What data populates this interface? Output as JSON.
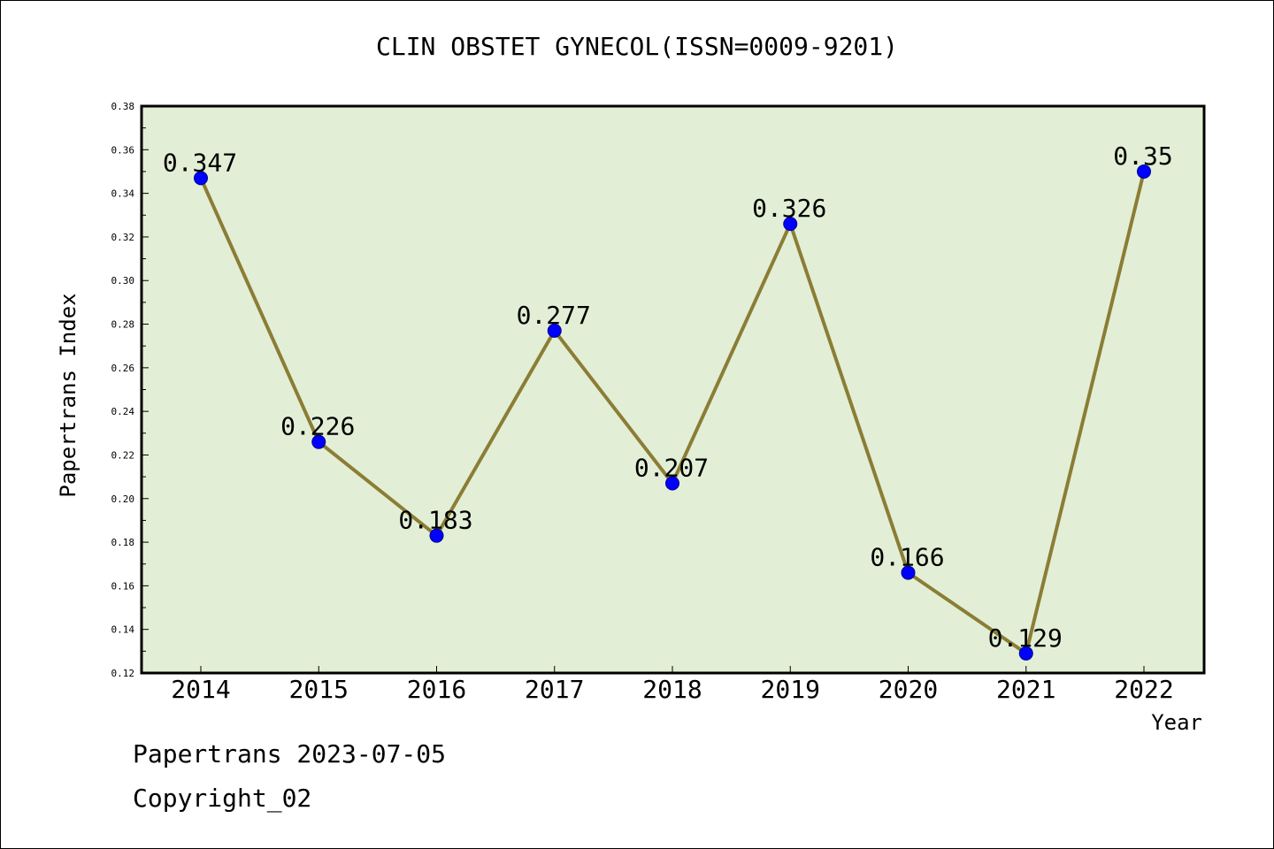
{
  "chart_data": {
    "type": "line",
    "title": "CLIN OBSTET GYNECOL(ISSN=0009-9201)",
    "xlabel": "Year",
    "ylabel": "Papertrans Index",
    "categories": [
      "2014",
      "2015",
      "2016",
      "2017",
      "2018",
      "2019",
      "2020",
      "2021",
      "2022"
    ],
    "values": [
      0.347,
      0.226,
      0.183,
      0.277,
      0.207,
      0.326,
      0.166,
      0.129,
      0.35
    ],
    "data_labels": [
      "0.347",
      "0.226",
      "0.183",
      "0.277",
      "0.207",
      "0.326",
      "0.166",
      "0.129",
      "0.35"
    ],
    "ylim": [
      0.12,
      0.38
    ],
    "yticks": [
      "0.12",
      "0.14",
      "0.16",
      "0.18",
      "0.20",
      "0.22",
      "0.24",
      "0.26",
      "0.28",
      "0.30",
      "0.32",
      "0.34",
      "0.36",
      "0.38"
    ],
    "grid": false,
    "colors": {
      "plot_background": "#e2efd6",
      "line": "#8b7d35",
      "marker": "#0000ff"
    }
  },
  "footer": {
    "line1": "Papertrans 2023-07-05",
    "line2": "Copyright_02"
  }
}
